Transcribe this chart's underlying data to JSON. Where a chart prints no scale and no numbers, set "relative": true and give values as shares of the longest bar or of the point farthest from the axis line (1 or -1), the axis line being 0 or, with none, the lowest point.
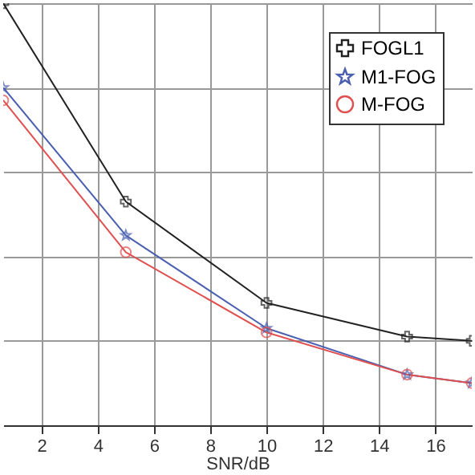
{
  "chart_data": {
    "type": "line",
    "xlabel": "SNR/dB",
    "relative": true,
    "xlim": [
      0.64,
      17.3
    ],
    "xticks": [
      2,
      4,
      6,
      8,
      10,
      12,
      14,
      16
    ],
    "grid": true,
    "legend": "top right",
    "series": [
      {
        "name": "FOGL1",
        "color": "#222222",
        "marker": "cross",
        "x": [
          0.64,
          5,
          10,
          15,
          17.3
        ],
        "values": [
          1,
          0.53,
          0.29,
          0.21,
          0.2
        ]
      },
      {
        "name": "M1-FOG",
        "color": "#4a5fb0",
        "marker": "star",
        "x": [
          0.64,
          5,
          10,
          15,
          17.3
        ],
        "values": [
          0.8,
          0.45,
          0.23,
          0.12,
          0.1
        ]
      },
      {
        "name": "M-FOG",
        "color": "#e05050",
        "marker": "circle",
        "x": [
          0.64,
          5,
          10,
          15,
          17.3
        ],
        "values": [
          0.77,
          0.41,
          0.22,
          0.12,
          0.1
        ]
      }
    ]
  }
}
